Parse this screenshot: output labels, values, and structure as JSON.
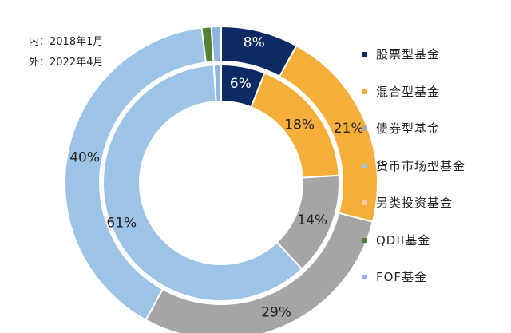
{
  "notes": {
    "inner": "内：2018年1月",
    "outer": "外：2022年4月"
  },
  "chart_data": {
    "type": "donut",
    "title": "",
    "rings": [
      {
        "name": "2018年1月",
        "position": "inner",
        "values": [
          6,
          18,
          14,
          61,
          0,
          0,
          1
        ],
        "data_labels": [
          "6%",
          "18%",
          "14%",
          "61%",
          "",
          "",
          ""
        ]
      },
      {
        "name": "2022年4月",
        "position": "outer",
        "values": [
          8,
          21,
          29,
          40,
          0,
          1,
          1
        ],
        "data_labels": [
          "8%",
          "21%",
          "29%",
          "40%",
          "",
          "",
          ""
        ]
      }
    ],
    "categories": [
      "股票型基金",
      "混合型基金",
      "债券型基金",
      "货币市场型基金",
      "另类投资基金",
      "QDII基金",
      "FOF基金"
    ],
    "colors": [
      "#0d2a62",
      "#f6ae3a",
      "#a5a5a7",
      "#9dc3e6",
      "#f8cbad",
      "#548235",
      "#8fb4e3"
    ],
    "label_colors": [
      "#ffffff",
      "#222222",
      "#222222",
      "#222222",
      "#222222",
      "#222222",
      "#222222"
    ],
    "legend": {
      "position": "right"
    }
  }
}
